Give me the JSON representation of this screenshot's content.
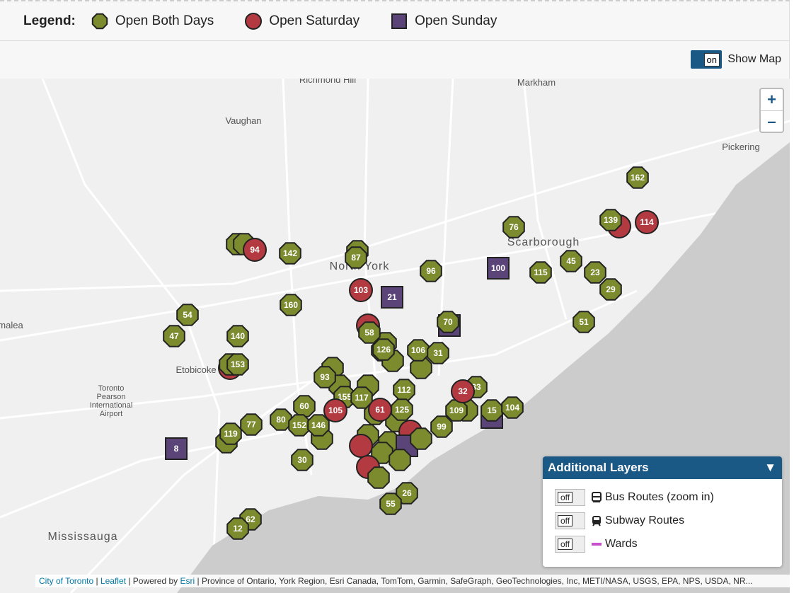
{
  "legend": {
    "title": "Legend:",
    "items": [
      {
        "label": "Open Both Days",
        "kind": "both"
      },
      {
        "label": "Open Saturday",
        "kind": "saturday"
      },
      {
        "label": "Open Sunday",
        "kind": "sunday"
      }
    ]
  },
  "toggle": {
    "state": "on",
    "label": "Show Map"
  },
  "zoom": {
    "in": "+",
    "out": "–"
  },
  "places": [
    "Richmond Hill",
    "Vaughan",
    "Markham",
    "Pickering",
    "Scarborough",
    "North York",
    "Etobicoke",
    "Toronto Pearson International Airport",
    "Mississauga",
    "malea"
  ],
  "markers": [
    {
      "label": "142",
      "kind": "both"
    },
    {
      "label": "87",
      "kind": "both"
    },
    {
      "label": "96",
      "kind": "both"
    },
    {
      "label": "76",
      "kind": "both"
    },
    {
      "label": "115",
      "kind": "both"
    },
    {
      "label": "45",
      "kind": "both"
    },
    {
      "label": "23",
      "kind": "both"
    },
    {
      "label": "29",
      "kind": "both"
    },
    {
      "label": "139",
      "kind": "both"
    },
    {
      "label": "162",
      "kind": "both"
    },
    {
      "label": "51",
      "kind": "both"
    },
    {
      "label": "160",
      "kind": "both"
    },
    {
      "label": "54",
      "kind": "both"
    },
    {
      "label": "47",
      "kind": "both"
    },
    {
      "label": "140",
      "kind": "both"
    },
    {
      "label": "153",
      "kind": "both"
    },
    {
      "label": "58",
      "kind": "both"
    },
    {
      "label": "70",
      "kind": "both"
    },
    {
      "label": "126",
      "kind": "both"
    },
    {
      "label": "106",
      "kind": "both"
    },
    {
      "label": "31",
      "kind": "both"
    },
    {
      "label": "93",
      "kind": "both"
    },
    {
      "label": "112",
      "kind": "both"
    },
    {
      "label": "155",
      "kind": "both"
    },
    {
      "label": "117",
      "kind": "both"
    },
    {
      "label": "60",
      "kind": "both"
    },
    {
      "label": "125",
      "kind": "both"
    },
    {
      "label": "80",
      "kind": "both"
    },
    {
      "label": "152",
      "kind": "both"
    },
    {
      "label": "146",
      "kind": "both"
    },
    {
      "label": "77",
      "kind": "both"
    },
    {
      "label": "119",
      "kind": "both"
    },
    {
      "label": "109",
      "kind": "both"
    },
    {
      "label": "15",
      "kind": "both"
    },
    {
      "label": "104",
      "kind": "both"
    },
    {
      "label": "99",
      "kind": "both"
    },
    {
      "label": "30",
      "kind": "both"
    },
    {
      "label": "26",
      "kind": "both"
    },
    {
      "label": "55",
      "kind": "both"
    },
    {
      "label": "62",
      "kind": "both"
    },
    {
      "label": "12",
      "kind": "both"
    },
    {
      "label": "33",
      "kind": "both"
    },
    {
      "label": "94",
      "kind": "saturday"
    },
    {
      "label": "103",
      "kind": "saturday"
    },
    {
      "label": "114",
      "kind": "saturday"
    },
    {
      "label": "32",
      "kind": "saturday"
    },
    {
      "label": "105",
      "kind": "saturday"
    },
    {
      "label": "61",
      "kind": "saturday"
    },
    {
      "label": "100",
      "kind": "sunday"
    },
    {
      "label": "21",
      "kind": "sunday"
    },
    {
      "label": "8",
      "kind": "sunday"
    }
  ],
  "layers": {
    "title": "Additional Layers",
    "items": [
      {
        "state": "off",
        "label": "Bus Routes (zoom in)",
        "icon": "bus"
      },
      {
        "state": "off",
        "label": "Subway Routes",
        "icon": "subway"
      },
      {
        "state": "off",
        "label": "Wards",
        "icon": "wards"
      }
    ]
  },
  "attribution": [
    {
      "text": "City of Toronto",
      "link": true
    },
    {
      "text": " | "
    },
    {
      "text": "Leaflet",
      "link": true
    },
    {
      "text": " | Powered by "
    },
    {
      "text": "Esri",
      "link": true
    },
    {
      "text": " | Province of Ontario, York Region, Esri Canada, TomTom, Garmin, SafeGraph, GeoTechnologies, Inc, METI/NASA, USGS, EPA, NPS, USDA, NR..."
    }
  ]
}
